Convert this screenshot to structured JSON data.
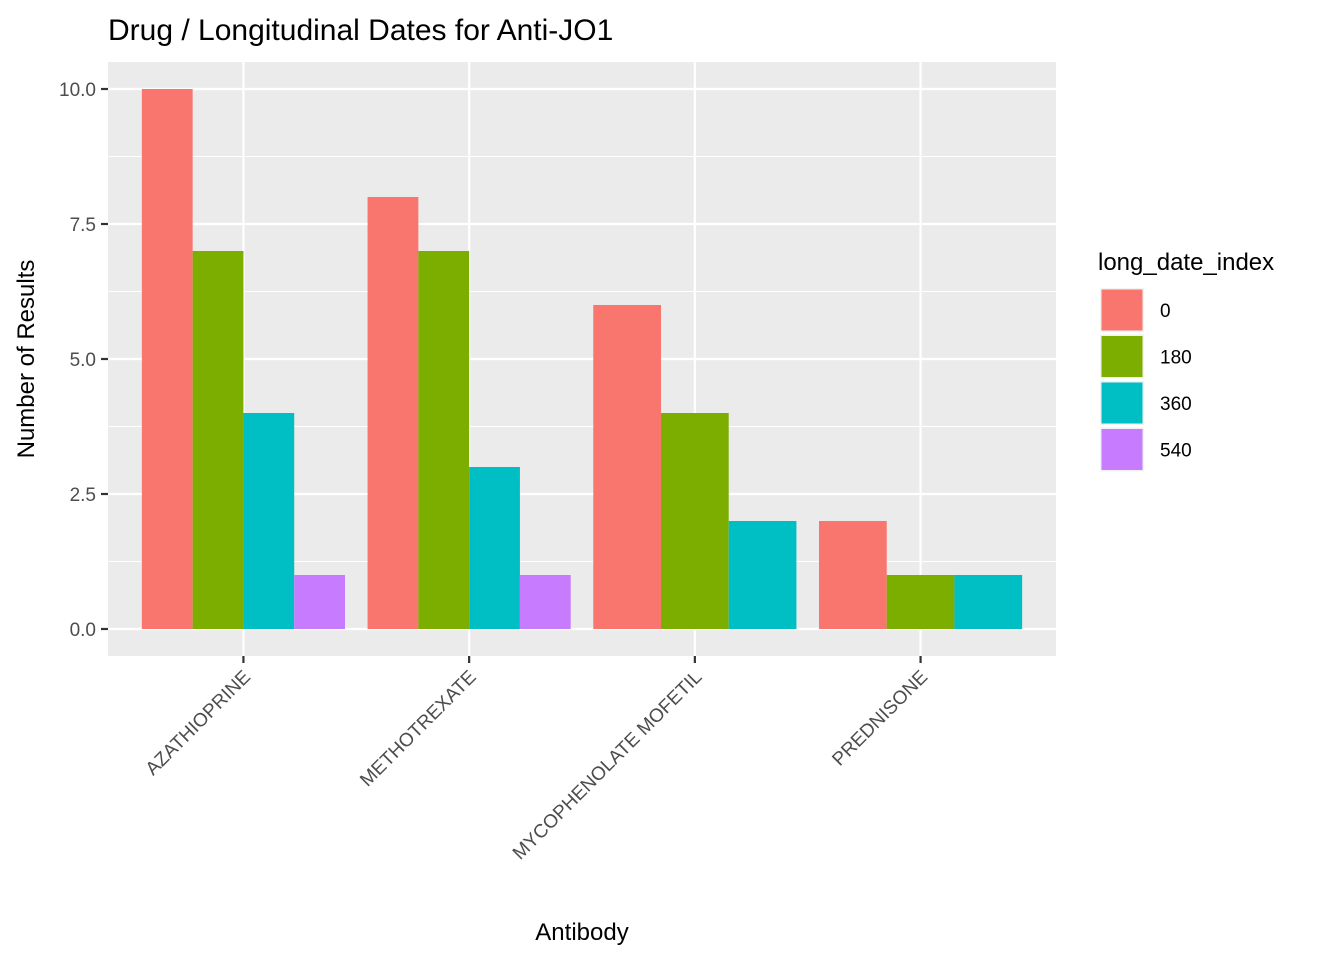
{
  "chart_data": {
    "type": "bar",
    "title": "Drug / Longitudinal Dates for Anti-JO1",
    "xlabel": "Antibody",
    "ylabel": "Number of Results",
    "categories": [
      "AZATHIOPRINE",
      "METHOTREXATE",
      "MYCOPHENOLATE MOFETIL",
      "PREDNISONE"
    ],
    "series": [
      {
        "name": "0",
        "color": "#F8766D",
        "values": [
          10,
          8,
          6,
          2
        ]
      },
      {
        "name": "180",
        "color": "#7CAE00",
        "values": [
          7,
          7,
          4,
          1
        ]
      },
      {
        "name": "360",
        "color": "#00BFC4",
        "values": [
          4,
          3,
          2,
          1
        ]
      },
      {
        "name": "540",
        "color": "#C77CFF",
        "values": [
          1,
          1,
          null,
          null
        ]
      }
    ],
    "yticks": [
      "0.0",
      "2.5",
      "5.0",
      "7.5",
      "10.0"
    ],
    "ylim": [
      -0.5,
      10.5
    ],
    "grid": true,
    "legend": {
      "title": "long_date_index",
      "position": "right"
    },
    "panel_background": "#EBEBEB"
  }
}
